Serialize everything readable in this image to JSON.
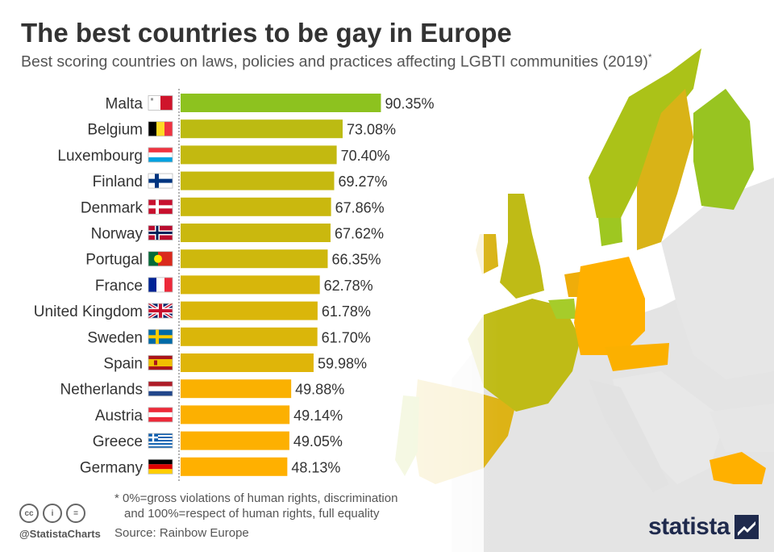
{
  "header": {
    "title": "The best countries to be gay in Europe",
    "subtitle": "Best scoring countries on laws, policies and practices affecting LGBTI communities (2019)",
    "subtitle_mark": "*"
  },
  "chart_data": {
    "type": "bar",
    "orientation": "horizontal",
    "title": "The best countries to be gay in Europe",
    "subtitle": "Best scoring countries on laws, policies and practices affecting LGBTI communities (2019)",
    "categories": [
      "Malta",
      "Belgium",
      "Luxembourg",
      "Finland",
      "Denmark",
      "Norway",
      "Portugal",
      "France",
      "United Kingdom",
      "Sweden",
      "Spain",
      "Netherlands",
      "Austria",
      "Greece",
      "Germany"
    ],
    "values": [
      90.35,
      73.08,
      70.4,
      69.27,
      67.86,
      67.62,
      66.35,
      62.78,
      61.78,
      61.7,
      59.98,
      49.88,
      49.14,
      49.05,
      48.13
    ],
    "value_labels": [
      "90.35%",
      "73.08%",
      "70.40%",
      "69.27%",
      "67.86%",
      "67.62%",
      "66.35%",
      "62.78%",
      "61.78%",
      "61.70%",
      "59.98%",
      "49.88%",
      "49.14%",
      "49.05%",
      "48.13%"
    ],
    "xlim": [
      0,
      100
    ],
    "unit": "%",
    "color_scale": {
      "low": "#ffb000",
      "high": "#8dc21f"
    },
    "flags": [
      "malta-flag",
      "belgium-flag",
      "luxembourg-flag",
      "finland-flag",
      "denmark-flag",
      "norway-flag",
      "portugal-flag",
      "france-flag",
      "united-kingdom-flag",
      "sweden-flag",
      "spain-flag",
      "netherlands-flag",
      "austria-flag",
      "greece-flag",
      "germany-flag"
    ],
    "grid": false,
    "legend": "none"
  },
  "footnote": {
    "line1": "* 0%=gross violations of human rights, discrimination",
    "line2": "and 100%=respect of human rights, full equality"
  },
  "footer": {
    "handle": "@StatistaCharts",
    "source": "Source: Rainbow Europe",
    "brand": "statista",
    "cc_icons": [
      "cc-icon",
      "by-icon",
      "nd-icon"
    ],
    "cc_labels": [
      "cc",
      "i",
      "="
    ]
  }
}
